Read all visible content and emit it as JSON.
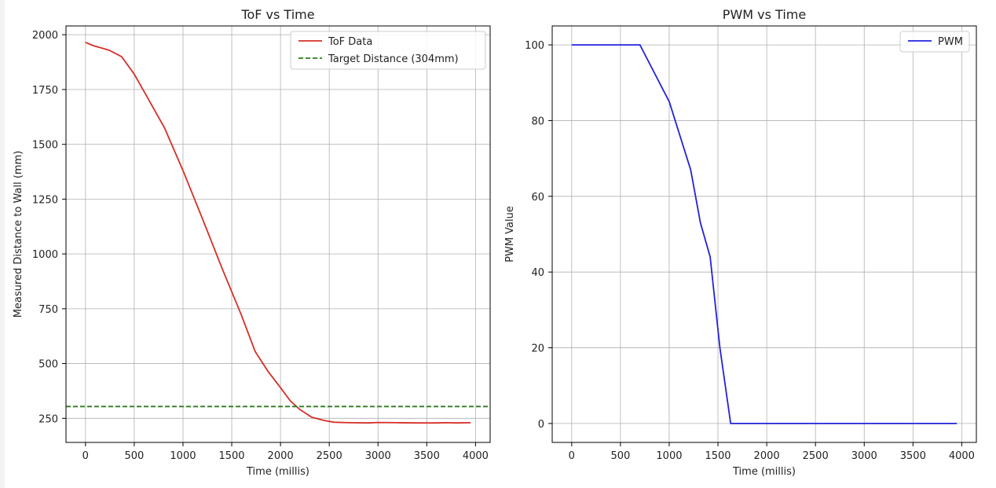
{
  "chart_data": [
    {
      "type": "line",
      "title": "ToF vs Time",
      "xlabel": "Time (millis)",
      "ylabel": "Measured Distance to Wall (mm)",
      "xlim": [
        -200,
        4150
      ],
      "ylim": [
        140,
        2040
      ],
      "xticks": [
        0,
        500,
        1000,
        1500,
        2000,
        2500,
        3000,
        3500,
        4000
      ],
      "yticks": [
        250,
        500,
        750,
        1000,
        1250,
        1500,
        1750,
        2000
      ],
      "grid": true,
      "legend_position": "top-right",
      "series": [
        {
          "name": "ToF Data",
          "color": "#d62f27",
          "style": "solid",
          "x": [
            0,
            80,
            240,
            370,
            500,
            640,
            810,
            1000,
            1200,
            1400,
            1600,
            1740,
            1870,
            2000,
            2100,
            2200,
            2320,
            2450,
            2550,
            2700,
            2900,
            3000,
            3200,
            3400,
            3600,
            3700,
            3800,
            3950
          ],
          "y": [
            1965,
            1950,
            1930,
            1900,
            1820,
            1710,
            1575,
            1380,
            1160,
            935,
            720,
            555,
            465,
            390,
            330,
            290,
            255,
            240,
            232,
            230,
            229,
            231,
            230,
            229,
            229,
            230,
            229,
            230
          ]
        },
        {
          "name": "Target Distance (304mm)",
          "color": "#2e7d1e",
          "style": "dashed",
          "x": [
            -200,
            4150
          ],
          "y": [
            304,
            304
          ]
        }
      ]
    },
    {
      "type": "line",
      "title": "PWM vs Time",
      "xlabel": "Time (millis)",
      "ylabel": "PWM Value",
      "xlim": [
        -200,
        4150
      ],
      "ylim": [
        -5,
        105
      ],
      "xticks": [
        0,
        500,
        1000,
        1500,
        2000,
        2500,
        3000,
        3500,
        4000
      ],
      "yticks": [
        0,
        20,
        40,
        60,
        80,
        100
      ],
      "grid": true,
      "legend_position": "top-right",
      "series": [
        {
          "name": "PWM",
          "color": "#2222dd",
          "style": "solid",
          "x": [
            0,
            700,
            1000,
            1220,
            1320,
            1420,
            1520,
            1630,
            2000,
            3000,
            3950
          ],
          "y": [
            100,
            100,
            85,
            67,
            53,
            44,
            20,
            0,
            0,
            0,
            0
          ]
        }
      ]
    }
  ]
}
